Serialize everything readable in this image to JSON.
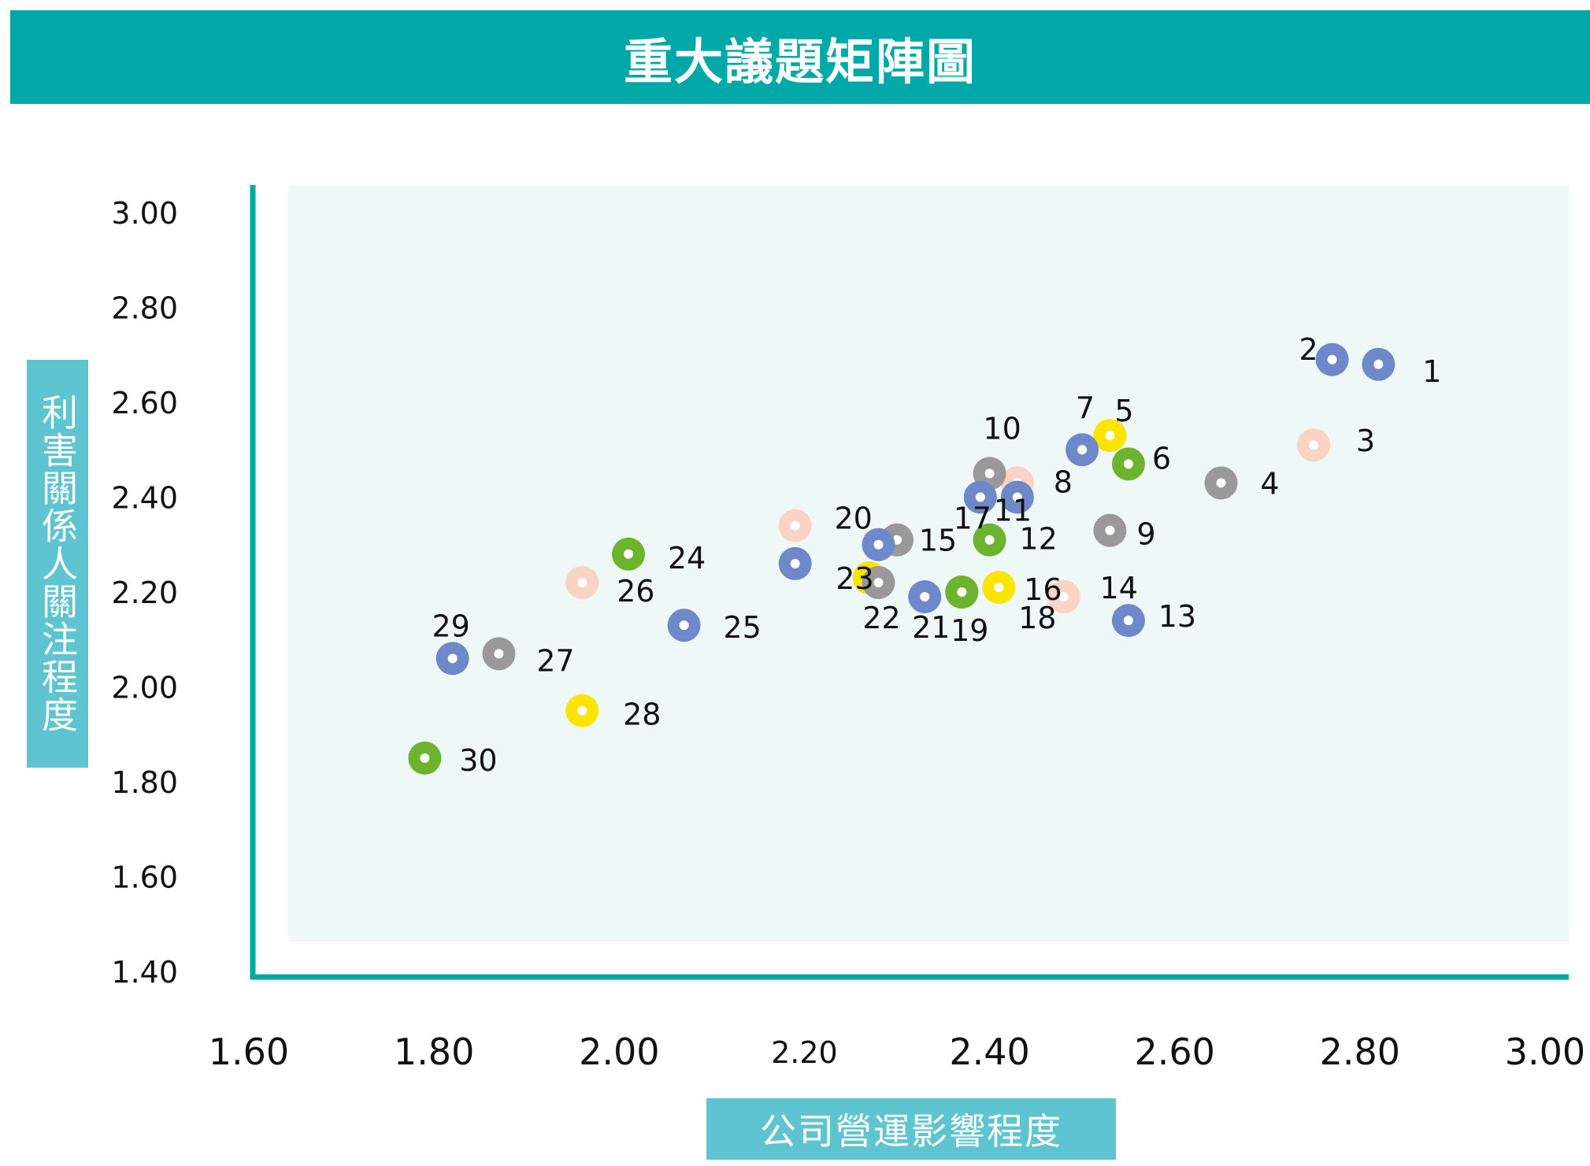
{
  "header": {
    "title": "重大議題矩陣圖"
  },
  "chart_data": {
    "type": "scatter",
    "title": "重大議題矩陣圖",
    "xlabel": "公司營運影響程度",
    "ylabel": "利害關係人關注程度",
    "xlim": [
      1.6,
      3.0
    ],
    "ylim": [
      1.4,
      3.0
    ],
    "x_ticks": [
      "1.60",
      "1.80",
      "2.00",
      "2.20",
      "2.40",
      "2.60",
      "2.80",
      "3.00"
    ],
    "y_ticks": [
      "3.00",
      "2.80",
      "2.60",
      "2.40",
      "2.20",
      "2.00",
      "1.80",
      "1.60",
      "1.40"
    ],
    "colors": {
      "blue": "#6f88c9",
      "gray": "#999999",
      "peach": "#f9d3c3",
      "yellow": "#fae500",
      "green": "#6db32e",
      "axis": "#00a8a8",
      "plot_bg": "#edf8f7"
    },
    "points": [
      {
        "label": "1",
        "x": 2.82,
        "y": 2.68,
        "color": "blue"
      },
      {
        "label": "2",
        "x": 2.77,
        "y": 2.69,
        "color": "blue"
      },
      {
        "label": "3",
        "x": 2.75,
        "y": 2.51,
        "color": "peach"
      },
      {
        "label": "4",
        "x": 2.65,
        "y": 2.43,
        "color": "gray"
      },
      {
        "label": "5",
        "x": 2.53,
        "y": 2.53,
        "color": "yellow"
      },
      {
        "label": "6",
        "x": 2.55,
        "y": 2.47,
        "color": "green"
      },
      {
        "label": "7",
        "x": 2.5,
        "y": 2.5,
        "color": "blue"
      },
      {
        "label": "8",
        "x": 2.43,
        "y": 2.43,
        "color": "peach"
      },
      {
        "label": "9",
        "x": 2.53,
        "y": 2.33,
        "color": "gray"
      },
      {
        "label": "10",
        "x": 2.4,
        "y": 2.45,
        "color": "gray"
      },
      {
        "label": "11",
        "x": 2.43,
        "y": 2.4,
        "color": "blue"
      },
      {
        "label": "12",
        "x": 2.4,
        "y": 2.31,
        "color": "green"
      },
      {
        "label": "13",
        "x": 2.55,
        "y": 2.14,
        "color": "blue"
      },
      {
        "label": "14",
        "x": 2.48,
        "y": 2.19,
        "color": "peach"
      },
      {
        "label": "15",
        "x": 2.3,
        "y": 2.31,
        "color": "gray"
      },
      {
        "label": "16",
        "x": 2.41,
        "y": 2.21,
        "color": "yellow"
      },
      {
        "label": "17",
        "x": 2.39,
        "y": 2.4,
        "color": "blue"
      },
      {
        "label": "18",
        "x": 2.37,
        "y": 2.2,
        "color": "green"
      },
      {
        "label": "19",
        "x": 2.37,
        "y": 2.2,
        "color": "green"
      },
      {
        "label": "20",
        "x": 2.19,
        "y": 2.34,
        "color": "peach"
      },
      {
        "label": "21",
        "x": 2.33,
        "y": 2.19,
        "color": "blue"
      },
      {
        "label": "22",
        "x": 2.28,
        "y": 2.22,
        "color": "gray"
      },
      {
        "label": "23",
        "x": 2.28,
        "y": 2.3,
        "color": "blue"
      },
      {
        "label": "24",
        "x": 2.01,
        "y": 2.28,
        "color": "green"
      },
      {
        "label": "25",
        "x": 2.07,
        "y": 2.13,
        "color": "blue"
      },
      {
        "label": "26",
        "x": 1.96,
        "y": 2.22,
        "color": "peach"
      },
      {
        "label": "27",
        "x": 1.87,
        "y": 2.07,
        "color": "gray"
      },
      {
        "label": "28",
        "x": 1.96,
        "y": 1.95,
        "color": "yellow"
      },
      {
        "label": "29",
        "x": 1.82,
        "y": 2.06,
        "color": "blue"
      },
      {
        "label": "30",
        "x": 1.79,
        "y": 1.85,
        "color": "green"
      }
    ],
    "extra_markers": [
      {
        "x": 2.19,
        "y": 2.26,
        "color": "blue"
      },
      {
        "x": 2.27,
        "y": 2.23,
        "color": "yellow"
      }
    ]
  }
}
